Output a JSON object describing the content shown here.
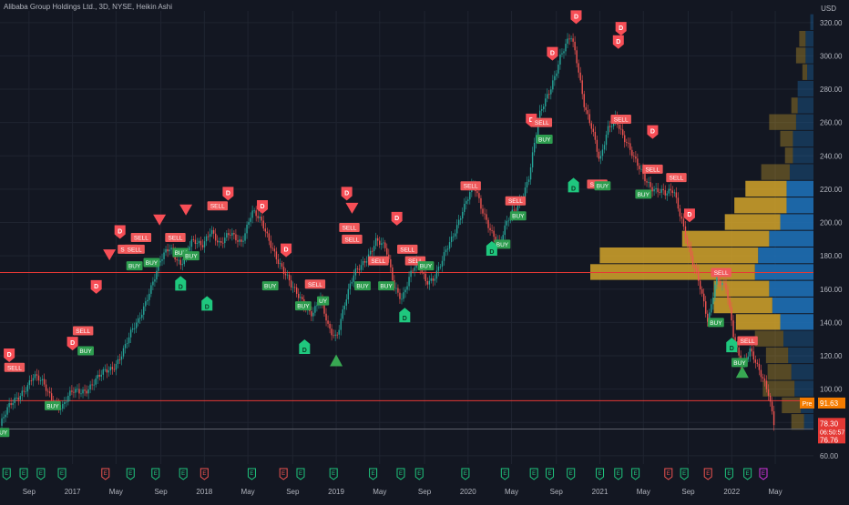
{
  "title": "Alibaba Group Holdings Ltd., 3D, NYSE, Heikin Ashi",
  "currency": "USD",
  "colors": {
    "background": "#131722",
    "grid": "#1f2430",
    "up": "#26a69a",
    "down": "#ef5350",
    "sell_label": "#f0595b",
    "buy_label": "#2e9d4f",
    "d_label": "#f74e56",
    "green_marker": "#1fc77e",
    "vp_gold": "#d4a52a",
    "vp_blue": "#1e6fb5",
    "hline": "#e53935",
    "pre_badge": "#f57c00",
    "price_badge": "#e53935"
  },
  "chart_data": {
    "type": "candlestick",
    "ylim": [
      55,
      327
    ],
    "y_ticks": [
      "320.00",
      "300.00",
      "280.00",
      "260.00",
      "240.00",
      "220.00",
      "200.00",
      "180.00",
      "160.00",
      "140.00",
      "120.00",
      "100.00",
      "80.00",
      "60.00"
    ],
    "y_tick_values": [
      320,
      300,
      280,
      260,
      240,
      220,
      200,
      180,
      160,
      140,
      120,
      100,
      80,
      60
    ],
    "x_axis_labels": [
      "Sep",
      "2017",
      "May",
      "Sep",
      "2018",
      "May",
      "Sep",
      "2019",
      "May",
      "Sep",
      "2020",
      "May",
      "Sep",
      "2021",
      "May",
      "Sep",
      "2022",
      "May"
    ],
    "x_axis_dates": [
      2016.67,
      2017.0,
      2017.33,
      2017.67,
      2018.0,
      2018.33,
      2018.67,
      2019.0,
      2019.33,
      2019.67,
      2020.0,
      2020.33,
      2020.67,
      2021.0,
      2021.33,
      2021.67,
      2022.0,
      2022.33
    ],
    "xlim": [
      2016.45,
      2022.62
    ],
    "price_path": [
      [
        2016.45,
        78
      ],
      [
        2016.52,
        88
      ],
      [
        2016.62,
        100
      ],
      [
        2016.7,
        107
      ],
      [
        2016.78,
        102
      ],
      [
        2016.86,
        94
      ],
      [
        2016.92,
        89
      ],
      [
        2017.0,
        97
      ],
      [
        2017.1,
        101
      ],
      [
        2017.2,
        106
      ],
      [
        2017.3,
        113
      ],
      [
        2017.4,
        126
      ],
      [
        2017.5,
        140
      ],
      [
        2017.58,
        160
      ],
      [
        2017.66,
        175
      ],
      [
        2017.74,
        184
      ],
      [
        2017.82,
        177
      ],
      [
        2017.9,
        187
      ],
      [
        2017.98,
        185
      ],
      [
        2018.05,
        198
      ],
      [
        2018.12,
        186
      ],
      [
        2018.2,
        192
      ],
      [
        2018.28,
        190
      ],
      [
        2018.36,
        206
      ],
      [
        2018.44,
        198
      ],
      [
        2018.52,
        186
      ],
      [
        2018.6,
        170
      ],
      [
        2018.66,
        160
      ],
      [
        2018.74,
        155
      ],
      [
        2018.82,
        145
      ],
      [
        2018.88,
        152
      ],
      [
        2018.94,
        137
      ],
      [
        2019.0,
        133
      ],
      [
        2019.06,
        150
      ],
      [
        2019.14,
        168
      ],
      [
        2019.22,
        179
      ],
      [
        2019.3,
        189
      ],
      [
        2019.38,
        182
      ],
      [
        2019.44,
        163
      ],
      [
        2019.5,
        156
      ],
      [
        2019.56,
        167
      ],
      [
        2019.62,
        175
      ],
      [
        2019.68,
        166
      ],
      [
        2019.74,
        168
      ],
      [
        2019.8,
        175
      ],
      [
        2019.88,
        190
      ],
      [
        2019.96,
        210
      ],
      [
        2020.04,
        222
      ],
      [
        2020.1,
        207
      ],
      [
        2020.18,
        196
      ],
      [
        2020.24,
        188
      ],
      [
        2020.3,
        199
      ],
      [
        2020.38,
        211
      ],
      [
        2020.46,
        228
      ],
      [
        2020.54,
        262
      ],
      [
        2020.62,
        280
      ],
      [
        2020.7,
        301
      ],
      [
        2020.78,
        310
      ],
      [
        2020.82,
        298
      ],
      [
        2020.88,
        273
      ],
      [
        2020.94,
        258
      ],
      [
        2021.0,
        234
      ],
      [
        2021.06,
        255
      ],
      [
        2021.12,
        265
      ],
      [
        2021.18,
        252
      ],
      [
        2021.26,
        236
      ],
      [
        2021.34,
        228
      ],
      [
        2021.42,
        220
      ],
      [
        2021.5,
        215
      ],
      [
        2021.56,
        220
      ],
      [
        2021.62,
        204
      ],
      [
        2021.7,
        175
      ],
      [
        2021.76,
        160
      ],
      [
        2021.82,
        142
      ],
      [
        2021.88,
        168
      ],
      [
        2021.96,
        158
      ],
      [
        2022.02,
        128
      ],
      [
        2022.08,
        117
      ],
      [
        2022.14,
        124
      ],
      [
        2022.2,
        110
      ],
      [
        2022.28,
        98
      ],
      [
        2022.32,
        82
      ]
    ],
    "signals": [
      {
        "label": "BUY",
        "x": 2016.46,
        "y": 74,
        "kind": "buy"
      },
      {
        "label": "D",
        "x": 2016.52,
        "y": 120,
        "kind": "d"
      },
      {
        "label": "SELL",
        "x": 2016.56,
        "y": 113,
        "kind": "sell"
      },
      {
        "label": "BUY",
        "x": 2016.85,
        "y": 90,
        "kind": "buy"
      },
      {
        "label": "D",
        "x": 2017.0,
        "y": 127,
        "kind": "d"
      },
      {
        "label": "SELL",
        "x": 2017.08,
        "y": 135,
        "kind": "sell"
      },
      {
        "label": "BUY",
        "x": 2017.1,
        "y": 123,
        "kind": "buy"
      },
      {
        "label": "D",
        "x": 2017.18,
        "y": 161,
        "kind": "d"
      },
      {
        "label": "D",
        "x": 2017.36,
        "y": 194,
        "kind": "d"
      },
      {
        "label": "SELL",
        "x": 2017.42,
        "y": 184,
        "kind": "sell"
      },
      {
        "label": "SELL",
        "x": 2017.47,
        "y": 184,
        "kind": "sell"
      },
      {
        "label": "BUY",
        "x": 2017.47,
        "y": 174,
        "kind": "buy"
      },
      {
        "label": "SELL",
        "x": 2017.52,
        "y": 191,
        "kind": "sell"
      },
      {
        "label": "BUY",
        "x": 2017.6,
        "y": 176,
        "kind": "buy"
      },
      {
        "label": "SELL",
        "x": 2017.78,
        "y": 191,
        "kind": "sell"
      },
      {
        "label": "BUY",
        "x": 2017.82,
        "y": 182,
        "kind": "buy"
      },
      {
        "label": "BUY",
        "x": 2017.9,
        "y": 180,
        "kind": "buy"
      },
      {
        "label": "SELL",
        "x": 2018.1,
        "y": 210,
        "kind": "sell"
      },
      {
        "label": "D",
        "x": 2018.18,
        "y": 217,
        "kind": "d"
      },
      {
        "label": "D",
        "x": 2018.44,
        "y": 209,
        "kind": "d"
      },
      {
        "label": "BUY",
        "x": 2018.5,
        "y": 162,
        "kind": "buy"
      },
      {
        "label": "D",
        "x": 2018.62,
        "y": 183,
        "kind": "d"
      },
      {
        "label": "BUY",
        "x": 2018.75,
        "y": 150,
        "kind": "buy"
      },
      {
        "label": "SELL",
        "x": 2018.84,
        "y": 163,
        "kind": "sell"
      },
      {
        "label": "UY",
        "x": 2018.9,
        "y": 153,
        "kind": "buy"
      },
      {
        "label": "D",
        "x": 2019.08,
        "y": 217,
        "kind": "d"
      },
      {
        "label": "SELL",
        "x": 2019.1,
        "y": 197,
        "kind": "sell"
      },
      {
        "label": "SELL",
        "x": 2019.12,
        "y": 190,
        "kind": "sell"
      },
      {
        "label": "BUY",
        "x": 2019.2,
        "y": 162,
        "kind": "buy"
      },
      {
        "label": "SELL",
        "x": 2019.32,
        "y": 177,
        "kind": "sell"
      },
      {
        "label": "BUY",
        "x": 2019.38,
        "y": 162,
        "kind": "buy"
      },
      {
        "label": "D",
        "x": 2019.46,
        "y": 202,
        "kind": "d"
      },
      {
        "label": "SELL",
        "x": 2019.54,
        "y": 184,
        "kind": "sell"
      },
      {
        "label": "SELL",
        "x": 2019.6,
        "y": 177,
        "kind": "sell"
      },
      {
        "label": "BUY",
        "x": 2019.68,
        "y": 174,
        "kind": "buy"
      },
      {
        "label": "SELL",
        "x": 2020.02,
        "y": 222,
        "kind": "sell"
      },
      {
        "label": "BUY",
        "x": 2020.26,
        "y": 187,
        "kind": "buy"
      },
      {
        "label": "SELL",
        "x": 2020.36,
        "y": 213,
        "kind": "sell"
      },
      {
        "label": "BUY",
        "x": 2020.38,
        "y": 204,
        "kind": "buy"
      },
      {
        "label": "D",
        "x": 2020.48,
        "y": 261,
        "kind": "d"
      },
      {
        "label": "SELL",
        "x": 2020.56,
        "y": 260,
        "kind": "sell"
      },
      {
        "label": "BUY",
        "x": 2020.58,
        "y": 250,
        "kind": "buy"
      },
      {
        "label": "D",
        "x": 2020.64,
        "y": 301,
        "kind": "d"
      },
      {
        "label": "D",
        "x": 2020.82,
        "y": 323,
        "kind": "d"
      },
      {
        "label": "SELL",
        "x": 2020.98,
        "y": 223,
        "kind": "sell"
      },
      {
        "label": "BUY",
        "x": 2021.02,
        "y": 222,
        "kind": "buy"
      },
      {
        "label": "D",
        "x": 2021.14,
        "y": 308,
        "kind": "d"
      },
      {
        "label": "D",
        "x": 2021.16,
        "y": 316,
        "kind": "d"
      },
      {
        "label": "SELL",
        "x": 2021.16,
        "y": 262,
        "kind": "sell"
      },
      {
        "label": "BUY",
        "x": 2021.33,
        "y": 217,
        "kind": "buy"
      },
      {
        "label": "D",
        "x": 2021.4,
        "y": 254,
        "kind": "d"
      },
      {
        "label": "SELL",
        "x": 2021.4,
        "y": 232,
        "kind": "sell"
      },
      {
        "label": "SELL",
        "x": 2021.58,
        "y": 227,
        "kind": "sell"
      },
      {
        "label": "D",
        "x": 2021.68,
        "y": 204,
        "kind": "d"
      },
      {
        "label": "BUY",
        "x": 2021.88,
        "y": 140,
        "kind": "buy"
      },
      {
        "label": "SELL",
        "x": 2021.92,
        "y": 170,
        "kind": "sell"
      },
      {
        "label": "BUY",
        "x": 2022.06,
        "y": 116,
        "kind": "buy"
      },
      {
        "label": "SELL",
        "x": 2022.12,
        "y": 129,
        "kind": "sell"
      }
    ],
    "green_d_markers": [
      {
        "label": "D",
        "x": 2017.82,
        "y": 164
      },
      {
        "label": "D",
        "x": 2018.02,
        "y": 152
      },
      {
        "label": "D",
        "x": 2018.76,
        "y": 126
      },
      {
        "label": "D",
        "x": 2019.52,
        "y": 145
      },
      {
        "label": "D",
        "x": 2020.18,
        "y": 185
      },
      {
        "label": "D",
        "x": 2020.8,
        "y": 223
      },
      {
        "label": "D",
        "x": 2022.0,
        "y": 127
      }
    ],
    "down_triangles": [
      {
        "x": 2017.28,
        "y": 180
      },
      {
        "x": 2017.66,
        "y": 201
      },
      {
        "x": 2017.86,
        "y": 207
      },
      {
        "x": 2019.12,
        "y": 208
      }
    ],
    "up_triangles": [
      {
        "x": 2019.0,
        "y": 117
      },
      {
        "x": 2022.08,
        "y": 110
      }
    ],
    "horizontal_lines": [
      170,
      93
    ],
    "gray_line": 76,
    "volume_profile": [
      {
        "price": 320,
        "gold": 0,
        "blue": 2
      },
      {
        "price": 310,
        "gold": 4,
        "blue": 5
      },
      {
        "price": 300,
        "gold": 6,
        "blue": 5
      },
      {
        "price": 290,
        "gold": 3,
        "blue": 4
      },
      {
        "price": 280,
        "gold": 0,
        "blue": 10
      },
      {
        "price": 270,
        "gold": 4,
        "blue": 10
      },
      {
        "price": 260,
        "gold": 17,
        "blue": 11
      },
      {
        "price": 250,
        "gold": 8,
        "blue": 13
      },
      {
        "price": 240,
        "gold": 5,
        "blue": 13
      },
      {
        "price": 230,
        "gold": 18,
        "blue": 15
      },
      {
        "price": 220,
        "gold": 26,
        "blue": 17
      },
      {
        "price": 210,
        "gold": 33,
        "blue": 17
      },
      {
        "price": 200,
        "gold": 35,
        "blue": 21
      },
      {
        "price": 190,
        "gold": 55,
        "blue": 28
      },
      {
        "price": 180,
        "gold": 100,
        "blue": 35
      },
      {
        "price": 170,
        "gold": 104,
        "blue": 37
      },
      {
        "price": 160,
        "gold": 35,
        "blue": 28
      },
      {
        "price": 150,
        "gold": 37,
        "blue": 26
      },
      {
        "price": 140,
        "gold": 28,
        "blue": 21
      },
      {
        "price": 130,
        "gold": 18,
        "blue": 19
      },
      {
        "price": 120,
        "gold": 14,
        "blue": 16
      },
      {
        "price": 110,
        "gold": 15,
        "blue": 14
      },
      {
        "price": 100,
        "gold": 20,
        "blue": 12
      },
      {
        "price": 90,
        "gold": 12,
        "blue": 8
      },
      {
        "price": 80,
        "gold": 8,
        "blue": 6
      }
    ],
    "earnings_markers": [
      {
        "x": 2016.5,
        "kind": "green"
      },
      {
        "x": 2016.63,
        "kind": "green"
      },
      {
        "x": 2016.76,
        "kind": "green"
      },
      {
        "x": 2016.92,
        "kind": "green"
      },
      {
        "x": 2017.25,
        "kind": "red"
      },
      {
        "x": 2017.44,
        "kind": "green"
      },
      {
        "x": 2017.63,
        "kind": "green"
      },
      {
        "x": 2017.84,
        "kind": "green"
      },
      {
        "x": 2018.0,
        "kind": "red"
      },
      {
        "x": 2018.36,
        "kind": "green"
      },
      {
        "x": 2018.6,
        "kind": "red"
      },
      {
        "x": 2018.73,
        "kind": "green"
      },
      {
        "x": 2018.98,
        "kind": "green"
      },
      {
        "x": 2019.28,
        "kind": "green"
      },
      {
        "x": 2019.49,
        "kind": "green"
      },
      {
        "x": 2019.63,
        "kind": "green"
      },
      {
        "x": 2019.98,
        "kind": "green"
      },
      {
        "x": 2020.28,
        "kind": "green"
      },
      {
        "x": 2020.5,
        "kind": "green"
      },
      {
        "x": 2020.62,
        "kind": "green"
      },
      {
        "x": 2020.78,
        "kind": "green"
      },
      {
        "x": 2021.0,
        "kind": "green"
      },
      {
        "x": 2021.14,
        "kind": "green"
      },
      {
        "x": 2021.27,
        "kind": "green"
      },
      {
        "x": 2021.52,
        "kind": "red"
      },
      {
        "x": 2021.64,
        "kind": "green"
      },
      {
        "x": 2021.82,
        "kind": "red"
      },
      {
        "x": 2021.98,
        "kind": "green"
      },
      {
        "x": 2022.12,
        "kind": "green"
      },
      {
        "x": 2022.24,
        "kind": "purple"
      }
    ],
    "earnings_label": "E"
  },
  "price_badges": {
    "pre_label": "Pre",
    "pre_value": "91.63",
    "last_value": "78.30",
    "countdown": "06:50:57",
    "low_value": "76.76"
  }
}
